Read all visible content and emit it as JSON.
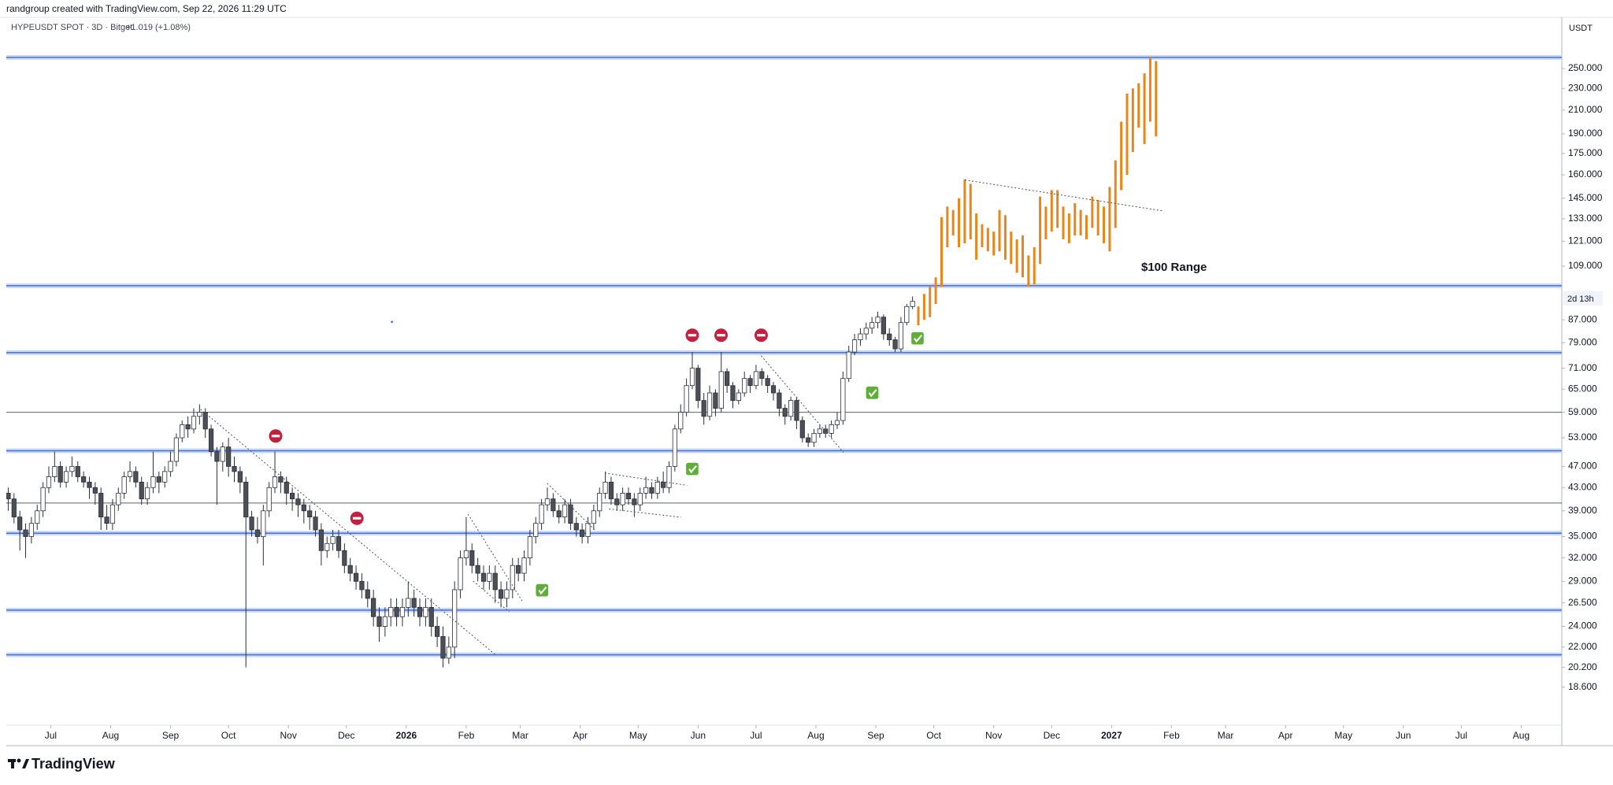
{
  "header": {
    "credit": "randgroup created with TradingView.com, Sep 22, 2026 11:29 UTC",
    "symbol": "HYPEUSDT SPOT · 3D · Bitget",
    "change": "+1.019 (+1.08%)",
    "currency": "USDT",
    "countdown": "2d 13h",
    "brand": "TradingView"
  },
  "chart_data": {
    "type": "candlestick",
    "log_scale": true,
    "grid": false,
    "xlim": [
      "2025-06-08",
      "2027-08-22"
    ],
    "ylim": [
      15.85,
      310
    ],
    "yticks": [
      {
        "value": 250,
        "label": "250.000"
      },
      {
        "value": 230,
        "label": "230.000"
      },
      {
        "value": 210,
        "label": "210.000"
      },
      {
        "value": 190,
        "label": "190.000"
      },
      {
        "value": 175,
        "label": "175.000"
      },
      {
        "value": 160,
        "label": "160.000"
      },
      {
        "value": 145,
        "label": "145.000"
      },
      {
        "value": 133,
        "label": "133.000"
      },
      {
        "value": 121,
        "label": "121.000"
      },
      {
        "value": 109,
        "label": "109.000"
      },
      {
        "value": 87,
        "label": "87.000"
      },
      {
        "value": 79,
        "label": "79.000"
      },
      {
        "value": 71,
        "label": "71.000"
      },
      {
        "value": 65,
        "label": "65.000"
      },
      {
        "value": 59,
        "label": "59.000"
      },
      {
        "value": 53,
        "label": "53.000"
      },
      {
        "value": 47,
        "label": "47.000"
      },
      {
        "value": 43,
        "label": "43.000"
      },
      {
        "value": 39,
        "label": "39.000"
      },
      {
        "value": 35,
        "label": "35.000"
      },
      {
        "value": 32,
        "label": "32.000"
      },
      {
        "value": 29,
        "label": "29.000"
      },
      {
        "value": 26.5,
        "label": "26.500"
      },
      {
        "value": 24,
        "label": "24.000"
      },
      {
        "value": 22,
        "label": "22.000"
      },
      {
        "value": 20.2,
        "label": "20.200"
      },
      {
        "value": 18.6,
        "label": "18.600"
      }
    ],
    "xticks": [
      {
        "value": "2025-07-01",
        "label": "Jul"
      },
      {
        "value": "2025-08-01",
        "label": "Aug"
      },
      {
        "value": "2025-09-01",
        "label": "Sep"
      },
      {
        "value": "2025-10-01",
        "label": "Oct"
      },
      {
        "value": "2025-11-01",
        "label": "Nov"
      },
      {
        "value": "2025-12-01",
        "label": "Dec"
      },
      {
        "value": "2026-01-01",
        "label": "2026"
      },
      {
        "value": "2026-02-01",
        "label": "Feb"
      },
      {
        "value": "2026-03-01",
        "label": "Mar"
      },
      {
        "value": "2026-04-01",
        "label": "Apr"
      },
      {
        "value": "2026-05-01",
        "label": "May"
      },
      {
        "value": "2026-06-01",
        "label": "Jun"
      },
      {
        "value": "2026-07-01",
        "label": "Jul"
      },
      {
        "value": "2026-08-01",
        "label": "Aug"
      },
      {
        "value": "2026-09-01",
        "label": "Sep"
      },
      {
        "value": "2026-10-01",
        "label": "Oct"
      },
      {
        "value": "2026-11-01",
        "label": "Nov"
      },
      {
        "value": "2026-12-01",
        "label": "Dec"
      },
      {
        "value": "2027-01-01",
        "label": "2027"
      },
      {
        "value": "2027-02-01",
        "label": "Feb"
      },
      {
        "value": "2027-03-01",
        "label": "Mar"
      },
      {
        "value": "2027-04-01",
        "label": "Apr"
      },
      {
        "value": "2027-05-01",
        "label": "May"
      },
      {
        "value": "2027-06-01",
        "label": "Jun"
      },
      {
        "value": "2027-07-01",
        "label": "Jul"
      },
      {
        "value": "2027-08-01",
        "label": "Aug"
      }
    ],
    "annotations": [
      "$100 Range"
    ],
    "layers": [
      {
        "type": "hline",
        "values": [
          262,
          100.4,
          75.8,
          50.2,
          35.5,
          25.7,
          21.3
        ],
        "color": "#4a6fd0",
        "band_color": "#c9d8f5"
      },
      {
        "type": "hline",
        "values": [
          59,
          40.3
        ],
        "color": "#5d606b"
      },
      {
        "type": "candlestick",
        "up_color": "#ffffff",
        "down_color": "#4d4f57",
        "wick_color": "#2a2e39",
        "x": [
          "2025-06-09",
          "2025-06-12",
          "2025-06-15",
          "2025-06-18",
          "2025-06-21",
          "2025-06-24",
          "2025-06-27",
          "2025-06-30",
          "2025-07-03",
          "2025-07-06",
          "2025-07-09",
          "2025-07-12",
          "2025-07-15",
          "2025-07-18",
          "2025-07-21",
          "2025-07-24",
          "2025-07-27",
          "2025-07-30",
          "2025-08-02",
          "2025-08-05",
          "2025-08-08",
          "2025-08-11",
          "2025-08-14",
          "2025-08-17",
          "2025-08-20",
          "2025-08-23",
          "2025-08-26",
          "2025-08-29",
          "2025-09-01",
          "2025-09-04",
          "2025-09-07",
          "2025-09-10",
          "2025-09-13",
          "2025-09-16",
          "2025-09-19",
          "2025-09-22",
          "2025-09-25",
          "2025-09-28",
          "2025-10-01",
          "2025-10-04",
          "2025-10-07",
          "2025-10-10",
          "2025-10-13",
          "2025-10-16",
          "2025-10-19",
          "2025-10-22",
          "2025-10-25",
          "2025-10-28",
          "2025-10-31",
          "2025-11-03",
          "2025-11-06",
          "2025-11-09",
          "2025-11-12",
          "2025-11-15",
          "2025-11-18",
          "2025-11-21",
          "2025-11-24",
          "2025-11-27",
          "2025-11-30",
          "2025-12-03",
          "2025-12-06",
          "2025-12-09",
          "2025-12-12",
          "2025-12-15",
          "2025-12-18",
          "2025-12-21",
          "2025-12-24",
          "2025-12-27",
          "2025-12-30",
          "2026-01-02",
          "2026-01-05",
          "2026-01-08",
          "2026-01-11",
          "2026-01-14",
          "2026-01-17",
          "2026-01-20",
          "2026-01-23",
          "2026-01-26",
          "2026-01-29",
          "2026-02-01",
          "2026-02-04",
          "2026-02-07",
          "2026-02-10",
          "2026-02-13",
          "2026-02-16",
          "2026-02-19",
          "2026-02-22",
          "2026-02-25",
          "2026-02-28",
          "2026-03-03",
          "2026-03-06",
          "2026-03-09",
          "2026-03-12",
          "2026-03-15",
          "2026-03-18",
          "2026-03-21",
          "2026-03-24",
          "2026-03-27",
          "2026-03-30",
          "2026-04-02",
          "2026-04-05",
          "2026-04-08",
          "2026-04-11",
          "2026-04-14",
          "2026-04-17",
          "2026-04-20",
          "2026-04-23",
          "2026-04-26",
          "2026-04-29",
          "2026-05-02",
          "2026-05-05",
          "2026-05-08",
          "2026-05-11",
          "2026-05-14",
          "2026-05-17",
          "2026-05-20",
          "2026-05-23",
          "2026-05-26",
          "2026-05-29",
          "2026-06-01",
          "2026-06-04",
          "2026-06-07",
          "2026-06-10",
          "2026-06-13",
          "2026-06-16",
          "2026-06-19",
          "2026-06-22",
          "2026-06-25",
          "2026-06-28",
          "2026-07-01",
          "2026-07-04",
          "2026-07-07",
          "2026-07-10",
          "2026-07-13",
          "2026-07-16",
          "2026-07-19",
          "2026-07-22",
          "2026-07-25",
          "2026-07-28",
          "2026-07-31",
          "2026-08-03",
          "2026-08-06",
          "2026-08-09",
          "2026-08-12",
          "2026-08-15",
          "2026-08-18",
          "2026-08-21",
          "2026-08-24",
          "2026-08-27",
          "2026-08-30",
          "2026-09-02",
          "2026-09-05",
          "2026-09-08",
          "2026-09-11",
          "2026-09-14",
          "2026-09-17",
          "2026-09-20"
        ],
        "open": [
          42,
          41,
          38,
          36,
          35,
          37,
          39,
          43,
          45,
          47,
          44,
          46,
          47,
          45,
          44,
          43,
          42,
          38,
          37,
          40,
          42,
          45,
          46,
          44,
          41,
          43,
          45,
          44,
          46,
          48,
          53,
          56,
          55,
          58,
          59,
          55,
          50,
          48,
          51,
          47,
          46,
          44,
          38,
          36,
          35,
          39,
          43,
          45,
          44,
          42,
          41,
          40,
          39,
          38,
          36,
          33,
          34,
          35,
          33,
          31,
          30,
          29,
          28,
          27,
          25,
          24,
          25,
          26,
          25,
          26,
          27,
          26,
          25,
          26,
          24,
          23,
          21,
          22,
          28,
          32,
          33,
          31,
          30,
          29,
          30,
          28,
          27,
          28,
          31,
          30,
          32,
          35,
          37,
          40,
          41,
          39,
          38,
          40,
          37,
          36,
          35,
          37,
          39,
          42,
          44,
          41,
          40,
          42,
          41,
          40,
          42,
          43,
          42,
          44,
          43,
          47,
          55,
          59,
          66,
          71,
          62,
          58,
          64,
          60,
          70,
          66,
          62,
          64,
          68,
          66,
          70,
          68,
          66,
          64,
          60,
          58,
          62,
          57,
          53,
          52,
          54,
          55,
          54,
          56,
          57,
          68,
          76,
          80,
          82,
          84,
          86,
          88,
          82,
          80,
          77,
          86,
          92
        ],
        "high": [
          43,
          42,
          39,
          37,
          38,
          40,
          44,
          47,
          50,
          48,
          47,
          49,
          48,
          46,
          45,
          44,
          43,
          40,
          41,
          43,
          46,
          48,
          47,
          45,
          44,
          50,
          46,
          47,
          50,
          54,
          57,
          58,
          60,
          61,
          60,
          56,
          51,
          52,
          53,
          49,
          47,
          45,
          39,
          38,
          40,
          44,
          50,
          46,
          45,
          43,
          42,
          41,
          40,
          39,
          37,
          35,
          36,
          36,
          34,
          32,
          31,
          30,
          29,
          28,
          26,
          26,
          27,
          27,
          27,
          29,
          28,
          27,
          27,
          27,
          25,
          24,
          23,
          29,
          33,
          38,
          34,
          32,
          31,
          31,
          31,
          29,
          29,
          32,
          32,
          33,
          36,
          38,
          41,
          43,
          42,
          40,
          41,
          41,
          38,
          37,
          38,
          40,
          43,
          46,
          45,
          42,
          43,
          43,
          42,
          43,
          45,
          44,
          45,
          46,
          48,
          56,
          61,
          68,
          76,
          72,
          64,
          66,
          65,
          76,
          71,
          67,
          65,
          70,
          69,
          72,
          71,
          69,
          67,
          65,
          61,
          63,
          63,
          58,
          54,
          55,
          56,
          56,
          57,
          59,
          70,
          78,
          82,
          84,
          86,
          88,
          90,
          89,
          84,
          81,
          88,
          93,
          96
        ],
        "low": [
          39,
          37,
          33,
          32,
          34,
          36,
          38,
          42,
          44,
          43,
          43,
          45,
          44,
          43,
          41,
          40,
          36,
          36,
          36,
          39,
          41,
          44,
          43,
          40,
          40,
          42,
          42,
          43,
          45,
          47,
          52,
          53,
          54,
          56,
          53,
          49,
          40,
          46,
          45,
          44,
          42,
          20.2,
          35,
          34,
          31,
          38,
          42,
          42,
          40,
          39,
          38,
          37,
          36,
          35,
          31,
          32,
          33,
          32,
          30,
          29,
          28,
          27,
          26,
          24,
          22.5,
          23,
          24,
          24,
          24,
          25,
          25,
          24,
          24,
          23,
          22,
          20.2,
          20.5,
          21,
          27,
          31,
          30,
          29,
          28,
          28,
          26.5,
          26,
          26,
          27,
          29,
          29,
          31,
          34,
          36,
          39,
          38,
          37,
          37,
          36,
          35,
          34,
          34,
          36,
          38,
          41,
          40,
          39,
          39,
          40,
          38,
          39,
          41,
          41,
          41,
          42,
          42,
          46,
          54,
          58,
          65,
          60,
          56,
          57,
          58,
          59,
          64,
          60,
          61,
          63,
          64,
          65,
          66,
          64,
          62,
          58,
          56,
          57,
          55,
          52,
          51,
          51,
          53,
          53,
          53,
          55,
          56,
          67,
          75,
          78,
          80,
          82,
          84,
          80,
          78,
          76,
          76,
          85,
          91
        ],
        "close": [
          41,
          38,
          36,
          35,
          37,
          39,
          43,
          45,
          47,
          44,
          46,
          47,
          45,
          44,
          43,
          42,
          38,
          37,
          40,
          42,
          45,
          46,
          44,
          41,
          43,
          45,
          44,
          46,
          48,
          53,
          56,
          55,
          58,
          59,
          55,
          50,
          48,
          51,
          47,
          46,
          44,
          38,
          36,
          35,
          39,
          43,
          45,
          44,
          42,
          41,
          40,
          39,
          38,
          36,
          33,
          34,
          35,
          33,
          31,
          30,
          29,
          28,
          27,
          25,
          24,
          25,
          26,
          25,
          26,
          27,
          26,
          25,
          26,
          24,
          23,
          21,
          22,
          28,
          32,
          33,
          31,
          30,
          29,
          30,
          28,
          27,
          28,
          31,
          30,
          32,
          35,
          37,
          40,
          41,
          39,
          38,
          40,
          37,
          36,
          35,
          37,
          39,
          42,
          44,
          41,
          40,
          42,
          41,
          40,
          42,
          43,
          42,
          44,
          43,
          47,
          55,
          59,
          66,
          71,
          62,
          58,
          64,
          60,
          70,
          66,
          62,
          64,
          68,
          66,
          70,
          68,
          66,
          64,
          60,
          58,
          62,
          57,
          53,
          52,
          54,
          55,
          54,
          56,
          57,
          68,
          76,
          80,
          82,
          84,
          86,
          88,
          82,
          80,
          77,
          86,
          92,
          94
        ]
      },
      {
        "type": "range_bar",
        "color": "#e8861a",
        "x": [
          "2026-09-23",
          "2026-09-26",
          "2026-09-29",
          "2026-10-02",
          "2026-10-05",
          "2026-10-08",
          "2026-10-11",
          "2026-10-14",
          "2026-10-17",
          "2026-10-20",
          "2026-10-23",
          "2026-10-26",
          "2026-10-29",
          "2026-11-01",
          "2026-11-04",
          "2026-11-07",
          "2026-11-10",
          "2026-11-13",
          "2026-11-16",
          "2026-11-19",
          "2026-11-22",
          "2026-11-25",
          "2026-11-28",
          "2026-12-01",
          "2026-12-04",
          "2026-12-07",
          "2026-12-10",
          "2026-12-13",
          "2026-12-16",
          "2026-12-19",
          "2026-12-22",
          "2026-12-25",
          "2026-12-28",
          "2026-12-31",
          "2027-01-03",
          "2027-01-06",
          "2027-01-09",
          "2027-01-12",
          "2027-01-15",
          "2027-01-18",
          "2027-01-21",
          "2027-01-24"
        ],
        "high": [
          92,
          97,
          100,
          104,
          134,
          140,
          138,
          145,
          157,
          154,
          136,
          130,
          128,
          126,
          138,
          135,
          126,
          122,
          124,
          114,
          118,
          146,
          140,
          150,
          150,
          140,
          136,
          142,
          138,
          135,
          146,
          144,
          140,
          152,
          170,
          200,
          225,
          230,
          235,
          245,
          262,
          258
        ],
        "low": [
          85,
          87,
          88,
          93,
          100,
          118,
          124,
          118,
          120,
          122,
          112,
          118,
          116,
          114,
          116,
          112,
          110,
          106,
          104,
          100,
          101,
          110,
          122,
          126,
          128,
          122,
          120,
          124,
          124,
          122,
          128,
          124,
          120,
          116,
          128,
          150,
          160,
          176,
          195,
          182,
          200,
          188
        ]
      }
    ]
  }
}
